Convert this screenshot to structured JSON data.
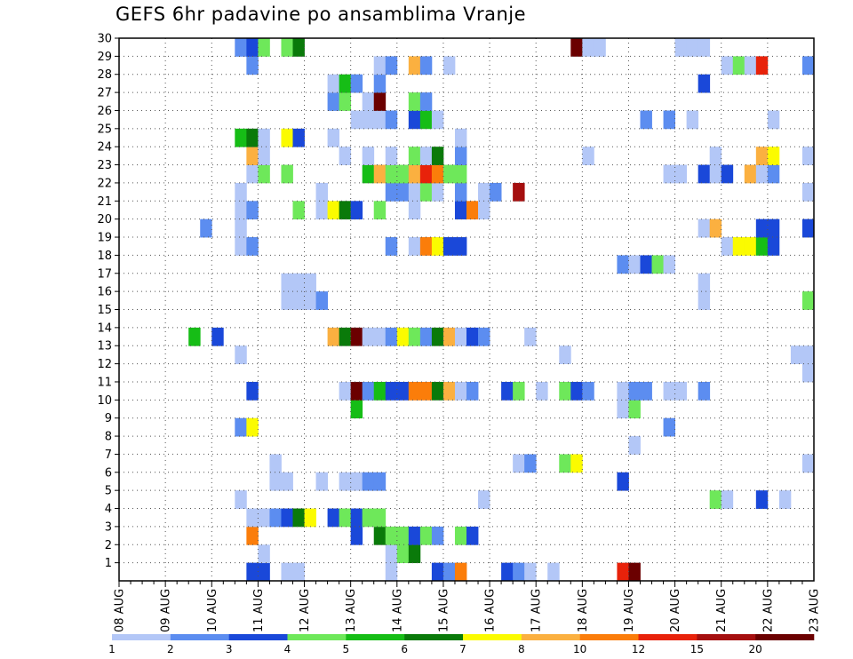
{
  "chart_data": {
    "type": "heatmap",
    "title": "GEFS 6hr padavine po ansamblima Vranje",
    "xlabel": "",
    "ylabel": "",
    "x_ticks": [
      "08 AUG",
      "09 AUG",
      "10 AUG",
      "11 AUG",
      "12 AUG",
      "13 AUG",
      "14 AUG",
      "15 AUG",
      "16 AUG",
      "17 AUG",
      "18 AUG",
      "19 AUG",
      "20 AUG",
      "21 AUG",
      "22 AUG",
      "23 AUG"
    ],
    "xlim_days": [
      8,
      23
    ],
    "y_ticks": [
      1,
      2,
      3,
      4,
      5,
      6,
      7,
      8,
      9,
      10,
      11,
      12,
      13,
      14,
      15,
      16,
      17,
      18,
      19,
      20,
      21,
      22,
      23,
      24,
      25,
      26,
      27,
      28,
      29,
      30
    ],
    "ylim": [
      0,
      30
    ],
    "grid": true,
    "colorbar": {
      "labels": [
        "1",
        "2",
        "3",
        "4",
        "5",
        "6",
        "7",
        "8",
        "10",
        "12",
        "15",
        "20"
      ],
      "colors": [
        "#b3c7f7",
        "#5c8df0",
        "#1a48d9",
        "#6ee85a",
        "#16bd16",
        "#0a7a0a",
        "#fbfb00",
        "#fbb040",
        "#fb7d0a",
        "#e8220a",
        "#a50f0f",
        "#6b0000"
      ]
    },
    "cells": [
      [
        0,
        10.75,
        3
      ],
      [
        0,
        11.0,
        3
      ],
      [
        0,
        11.5,
        1
      ],
      [
        0,
        11.75,
        1
      ],
      [
        0,
        13.75,
        1
      ],
      [
        0,
        14.75,
        3
      ],
      [
        0,
        15.0,
        2
      ],
      [
        0,
        15.25,
        9
      ],
      [
        0,
        16.25,
        3
      ],
      [
        0,
        16.5,
        2
      ],
      [
        0,
        16.75,
        1
      ],
      [
        0,
        17.25,
        1
      ],
      [
        0,
        18.75,
        10
      ],
      [
        0,
        19.0,
        12
      ],
      [
        1,
        11.0,
        1
      ],
      [
        1,
        13.75,
        1
      ],
      [
        1,
        14.0,
        4
      ],
      [
        1,
        14.25,
        6
      ],
      [
        2,
        10.75,
        9
      ],
      [
        2,
        13.0,
        3
      ],
      [
        2,
        13.5,
        6
      ],
      [
        2,
        13.75,
        4
      ],
      [
        2,
        14.0,
        4
      ],
      [
        2,
        14.25,
        3
      ],
      [
        2,
        14.5,
        4
      ],
      [
        2,
        14.75,
        2
      ],
      [
        2,
        15.25,
        4
      ],
      [
        2,
        15.5,
        3
      ],
      [
        3,
        10.75,
        1
      ],
      [
        3,
        11.0,
        1
      ],
      [
        3,
        11.25,
        2
      ],
      [
        3,
        11.5,
        3
      ],
      [
        3,
        11.75,
        6
      ],
      [
        3,
        12.0,
        7
      ],
      [
        3,
        12.5,
        3
      ],
      [
        3,
        12.75,
        4
      ],
      [
        3,
        13.0,
        3
      ],
      [
        3,
        13.25,
        4
      ],
      [
        3,
        13.5,
        4
      ],
      [
        4,
        10.5,
        1
      ],
      [
        4,
        15.75,
        1
      ],
      [
        4,
        20.75,
        4
      ],
      [
        4,
        21.0,
        1
      ],
      [
        4,
        21.75,
        3
      ],
      [
        4,
        22.25,
        1
      ],
      [
        5,
        11.25,
        1
      ],
      [
        5,
        11.5,
        1
      ],
      [
        5,
        12.25,
        1
      ],
      [
        5,
        12.75,
        1
      ],
      [
        5,
        13.0,
        1
      ],
      [
        5,
        13.25,
        2
      ],
      [
        5,
        13.5,
        2
      ],
      [
        5,
        18.75,
        3
      ],
      [
        6,
        11.25,
        1
      ],
      [
        6,
        16.5,
        1
      ],
      [
        6,
        16.75,
        2
      ],
      [
        6,
        17.5,
        4
      ],
      [
        6,
        17.75,
        7
      ],
      [
        6,
        22.75,
        1
      ],
      [
        7,
        19.0,
        1
      ],
      [
        8,
        10.5,
        2
      ],
      [
        8,
        10.75,
        7
      ],
      [
        8,
        19.75,
        2
      ],
      [
        9,
        13.0,
        5
      ],
      [
        9,
        18.75,
        1
      ],
      [
        9,
        19.0,
        4
      ],
      [
        10,
        10.75,
        3
      ],
      [
        10,
        12.75,
        1
      ],
      [
        10,
        13.0,
        12
      ],
      [
        10,
        13.25,
        2
      ],
      [
        10,
        13.5,
        5
      ],
      [
        10,
        13.75,
        3
      ],
      [
        10,
        14.0,
        3
      ],
      [
        10,
        14.25,
        9
      ],
      [
        10,
        14.5,
        9
      ],
      [
        10,
        14.75,
        6
      ],
      [
        10,
        15.0,
        8
      ],
      [
        10,
        15.25,
        1
      ],
      [
        10,
        15.5,
        2
      ],
      [
        10,
        16.25,
        3
      ],
      [
        10,
        16.5,
        4
      ],
      [
        10,
        17.0,
        1
      ],
      [
        10,
        17.5,
        4
      ],
      [
        10,
        17.75,
        3
      ],
      [
        10,
        18.0,
        2
      ],
      [
        10,
        18.75,
        1
      ],
      [
        10,
        19.0,
        2
      ],
      [
        10,
        19.25,
        2
      ],
      [
        10,
        19.75,
        1
      ],
      [
        10,
        20.0,
        1
      ],
      [
        10,
        20.5,
        2
      ],
      [
        11,
        22.75,
        1
      ],
      [
        12,
        10.5,
        1
      ],
      [
        12,
        17.5,
        1
      ],
      [
        12,
        22.5,
        1
      ],
      [
        12,
        22.75,
        1
      ],
      [
        13,
        9.5,
        5
      ],
      [
        13,
        10.0,
        3
      ],
      [
        13,
        12.5,
        8
      ],
      [
        13,
        12.75,
        6
      ],
      [
        13,
        13.0,
        12
      ],
      [
        13,
        13.25,
        1
      ],
      [
        13,
        13.5,
        1
      ],
      [
        13,
        13.75,
        2
      ],
      [
        13,
        14.0,
        7
      ],
      [
        13,
        14.25,
        4
      ],
      [
        13,
        14.5,
        2
      ],
      [
        13,
        14.75,
        6
      ],
      [
        13,
        15.0,
        8
      ],
      [
        13,
        15.25,
        1
      ],
      [
        13,
        15.5,
        3
      ],
      [
        13,
        15.75,
        2
      ],
      [
        13,
        16.75,
        1
      ],
      [
        15,
        11.5,
        1
      ],
      [
        15,
        11.75,
        1
      ],
      [
        15,
        12.0,
        1
      ],
      [
        15,
        12.25,
        2
      ],
      [
        15,
        20.5,
        1
      ],
      [
        15,
        22.75,
        4
      ],
      [
        16,
        11.5,
        1
      ],
      [
        16,
        11.75,
        1
      ],
      [
        16,
        12.0,
        1
      ],
      [
        16,
        20.5,
        1
      ],
      [
        17,
        18.75,
        2
      ],
      [
        17,
        19.0,
        1
      ],
      [
        17,
        19.25,
        3
      ],
      [
        17,
        19.5,
        4
      ],
      [
        17,
        19.75,
        1
      ],
      [
        18,
        10.5,
        1
      ],
      [
        18,
        10.75,
        2
      ],
      [
        18,
        13.75,
        2
      ],
      [
        18,
        14.25,
        1
      ],
      [
        18,
        14.5,
        9
      ],
      [
        18,
        14.75,
        7
      ],
      [
        18,
        15.0,
        3
      ],
      [
        18,
        15.25,
        3
      ],
      [
        18,
        21.0,
        1
      ],
      [
        18,
        21.25,
        7
      ],
      [
        18,
        21.5,
        7
      ],
      [
        18,
        21.75,
        5
      ],
      [
        18,
        22.0,
        3
      ],
      [
        19,
        9.75,
        2
      ],
      [
        19,
        10.5,
        1
      ],
      [
        19,
        20.5,
        1
      ],
      [
        19,
        20.75,
        8
      ],
      [
        19,
        21.75,
        3
      ],
      [
        19,
        22.0,
        3
      ],
      [
        19,
        22.75,
        3
      ],
      [
        20,
        10.5,
        1
      ],
      [
        20,
        10.75,
        2
      ],
      [
        20,
        11.75,
        4
      ],
      [
        20,
        12.25,
        1
      ],
      [
        20,
        12.5,
        7
      ],
      [
        20,
        12.75,
        6
      ],
      [
        20,
        13.0,
        3
      ],
      [
        20,
        13.5,
        4
      ],
      [
        20,
        14.25,
        1
      ],
      [
        20,
        15.25,
        3
      ],
      [
        20,
        15.5,
        9
      ],
      [
        20,
        15.75,
        1
      ],
      [
        21,
        10.5,
        1
      ],
      [
        21,
        12.25,
        1
      ],
      [
        21,
        13.75,
        2
      ],
      [
        21,
        14.0,
        2
      ],
      [
        21,
        14.25,
        1
      ],
      [
        21,
        14.5,
        4
      ],
      [
        21,
        14.75,
        1
      ],
      [
        21,
        15.25,
        2
      ],
      [
        21,
        15.75,
        1
      ],
      [
        21,
        16.0,
        2
      ],
      [
        21,
        16.5,
        11
      ],
      [
        21,
        22.75,
        1
      ],
      [
        22,
        10.75,
        1
      ],
      [
        22,
        11.0,
        4
      ],
      [
        22,
        11.5,
        4
      ],
      [
        22,
        13.25,
        5
      ],
      [
        22,
        13.5,
        8
      ],
      [
        22,
        13.75,
        4
      ],
      [
        22,
        14.0,
        4
      ],
      [
        22,
        14.25,
        8
      ],
      [
        22,
        14.5,
        10
      ],
      [
        22,
        14.75,
        9
      ],
      [
        22,
        15.0,
        4
      ],
      [
        22,
        15.25,
        4
      ],
      [
        22,
        19.75,
        1
      ],
      [
        22,
        20.0,
        1
      ],
      [
        22,
        20.5,
        3
      ],
      [
        22,
        20.75,
        1
      ],
      [
        22,
        21.0,
        3
      ],
      [
        22,
        21.5,
        8
      ],
      [
        22,
        21.75,
        1
      ],
      [
        22,
        22.0,
        2
      ],
      [
        23,
        10.75,
        8
      ],
      [
        23,
        11.0,
        1
      ],
      [
        23,
        12.75,
        1
      ],
      [
        23,
        13.25,
        1
      ],
      [
        23,
        13.75,
        1
      ],
      [
        23,
        14.25,
        4
      ],
      [
        23,
        14.5,
        1
      ],
      [
        23,
        14.75,
        6
      ],
      [
        23,
        15.25,
        2
      ],
      [
        23,
        18.0,
        1
      ],
      [
        23,
        20.75,
        1
      ],
      [
        23,
        21.75,
        8
      ],
      [
        23,
        22.0,
        7
      ],
      [
        23,
        22.75,
        1
      ],
      [
        24,
        10.5,
        5
      ],
      [
        24,
        10.75,
        6
      ],
      [
        24,
        11.0,
        1
      ],
      [
        24,
        11.5,
        7
      ],
      [
        24,
        11.75,
        3
      ],
      [
        24,
        12.5,
        1
      ],
      [
        24,
        15.25,
        1
      ],
      [
        25,
        13.0,
        1
      ],
      [
        25,
        13.25,
        1
      ],
      [
        25,
        13.5,
        1
      ],
      [
        25,
        13.75,
        2
      ],
      [
        25,
        14.25,
        3
      ],
      [
        25,
        14.5,
        5
      ],
      [
        25,
        14.75,
        1
      ],
      [
        25,
        19.25,
        2
      ],
      [
        25,
        19.75,
        2
      ],
      [
        25,
        20.25,
        1
      ],
      [
        25,
        22.0,
        1
      ],
      [
        26,
        12.5,
        2
      ],
      [
        26,
        12.75,
        4
      ],
      [
        26,
        13.25,
        1
      ],
      [
        26,
        13.5,
        12
      ],
      [
        26,
        14.25,
        4
      ],
      [
        26,
        14.5,
        2
      ],
      [
        27,
        12.5,
        1
      ],
      [
        27,
        12.75,
        5
      ],
      [
        27,
        13.0,
        2
      ],
      [
        27,
        13.5,
        2
      ],
      [
        27,
        20.5,
        3
      ],
      [
        28,
        10.75,
        2
      ],
      [
        28,
        13.5,
        1
      ],
      [
        28,
        13.75,
        2
      ],
      [
        28,
        14.25,
        8
      ],
      [
        28,
        14.5,
        2
      ],
      [
        28,
        15.0,
        1
      ],
      [
        28,
        21.0,
        1
      ],
      [
        28,
        21.25,
        4
      ],
      [
        28,
        21.5,
        1
      ],
      [
        28,
        21.75,
        10
      ],
      [
        28,
        22.75,
        2
      ],
      [
        29,
        10.5,
        2
      ],
      [
        29,
        10.75,
        3
      ],
      [
        29,
        11.0,
        4
      ],
      [
        29,
        11.5,
        4
      ],
      [
        29,
        11.75,
        6
      ],
      [
        29,
        17.75,
        12
      ],
      [
        29,
        18.0,
        1
      ],
      [
        29,
        18.25,
        1
      ],
      [
        29,
        20.0,
        1
      ],
      [
        29,
        20.25,
        1
      ],
      [
        29,
        20.5,
        1
      ]
    ]
  }
}
